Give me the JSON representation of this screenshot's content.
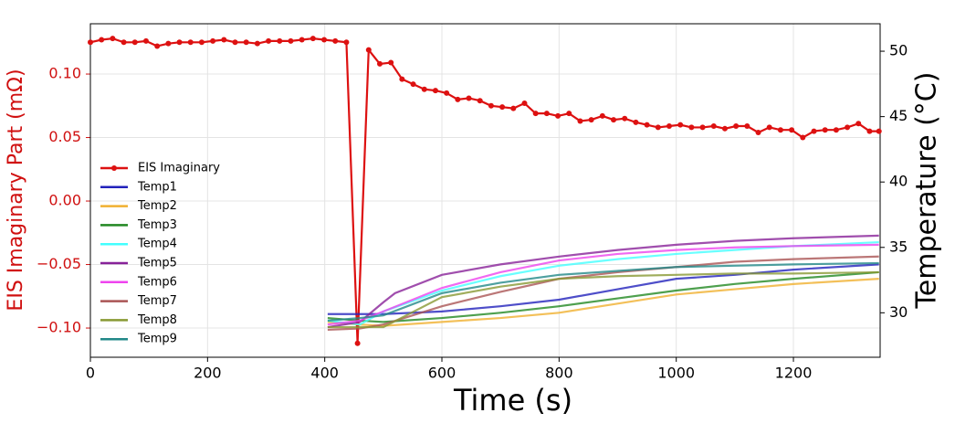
{
  "chart_data": {
    "type": "line",
    "xlabel": "Time (s)",
    "ylabel": "EIS Imaginary Part (mΩ)",
    "y2label": "Temperature (°C)",
    "xlim": [
      0,
      1348
    ],
    "xticks": [
      0,
      200,
      400,
      600,
      800,
      1000,
      1200
    ],
    "ylim": [
      -0.123,
      0.1396
    ],
    "yticks": [
      {
        "value": -0.1,
        "label": "−0.10"
      },
      {
        "value": -0.05,
        "label": "−0.05"
      },
      {
        "value": 0,
        "label": "0.00"
      },
      {
        "value": 0.05,
        "label": "0.05"
      },
      {
        "value": 0.1,
        "label": "0.10"
      }
    ],
    "y2lim": [
      26.6,
      52.1
    ],
    "y2ticks": [
      30,
      35,
      40,
      45,
      50
    ],
    "grid": true,
    "legend": "center left",
    "series": [
      {
        "name": "EIS Imaginary",
        "color": "#dd1111",
        "marker": true,
        "x": [
          0,
          19,
          38,
          57,
          76,
          95,
          114,
          133,
          152,
          171,
          190,
          209,
          228,
          247,
          266,
          285,
          304,
          323,
          342,
          361,
          380,
          399,
          418,
          437,
          456,
          475,
          494,
          513,
          532,
          551,
          570,
          589,
          608,
          627,
          646,
          665,
          684,
          703,
          722,
          741,
          760,
          779,
          798,
          817,
          836,
          855,
          874,
          893,
          912,
          931,
          950,
          969,
          988,
          1007,
          1026,
          1045,
          1064,
          1083,
          1102,
          1121,
          1140,
          1159,
          1178,
          1197,
          1216,
          1235,
          1254,
          1273,
          1292,
          1311,
          1330,
          1346
        ],
        "values": [
          0.125,
          0.127,
          0.128,
          0.125,
          0.125,
          0.126,
          0.122,
          0.124,
          0.125,
          0.125,
          0.125,
          0.126,
          0.127,
          0.125,
          0.125,
          0.124,
          0.126,
          0.126,
          0.126,
          0.127,
          0.128,
          0.127,
          0.126,
          0.125,
          -0.112,
          0.119,
          0.108,
          0.109,
          0.096,
          0.092,
          0.088,
          0.087,
          0.085,
          0.08,
          0.081,
          0.079,
          0.075,
          0.074,
          0.073,
          0.077,
          0.069,
          0.069,
          0.067,
          0.069,
          0.063,
          0.064,
          0.067,
          0.064,
          0.065,
          0.062,
          0.06,
          0.058,
          0.059,
          0.06,
          0.058,
          0.058,
          0.059,
          0.057,
          0.059,
          0.059,
          0.054,
          0.058,
          0.056,
          0.056,
          0.05,
          0.055,
          0.056,
          0.056,
          0.058,
          0.061,
          0.055,
          0.055
        ]
      },
      {
        "name": "Temp1",
        "color": "#2222bb",
        "axis": "y2",
        "x": [
          405,
          460,
          500,
          600,
          700,
          800,
          900,
          1000,
          1100,
          1200,
          1346
        ],
        "values": [
          29.9,
          29.9,
          29.9,
          30.1,
          30.5,
          31.0,
          31.8,
          32.6,
          32.9,
          33.3,
          33.7
        ]
      },
      {
        "name": "Temp2",
        "color": "#f0b030",
        "axis": "y2",
        "x": [
          405,
          460,
          500,
          600,
          700,
          800,
          900,
          1000,
          1100,
          1200,
          1346
        ],
        "values": [
          29.3,
          29.1,
          29.0,
          29.3,
          29.6,
          30.0,
          30.7,
          31.4,
          31.8,
          32.2,
          32.6
        ]
      },
      {
        "name": "Temp3",
        "color": "#228822",
        "axis": "y2",
        "x": [
          405,
          460,
          500,
          600,
          700,
          800,
          900,
          1000,
          1100,
          1200,
          1346
        ],
        "values": [
          29.6,
          29.4,
          29.3,
          29.6,
          30.0,
          30.5,
          31.1,
          31.7,
          32.2,
          32.6,
          33.1
        ]
      },
      {
        "name": "Temp4",
        "color": "#44ffff",
        "axis": "y2",
        "x": [
          405,
          460,
          500,
          600,
          700,
          800,
          900,
          1000,
          1100,
          1200,
          1346
        ],
        "values": [
          29.4,
          29.1,
          30.1,
          31.7,
          32.8,
          33.6,
          34.1,
          34.5,
          34.8,
          35.1,
          35.4
        ]
      },
      {
        "name": "Temp5",
        "color": "#882299",
        "axis": "y2",
        "x": [
          405,
          460,
          500,
          520,
          600,
          700,
          800,
          900,
          1000,
          1100,
          1200,
          1346
        ],
        "values": [
          28.9,
          29.3,
          30.8,
          31.5,
          32.9,
          33.7,
          34.3,
          34.8,
          35.2,
          35.5,
          35.7,
          35.9
        ]
      },
      {
        "name": "Temp6",
        "color": "#ee44ee",
        "axis": "y2",
        "x": [
          405,
          460,
          500,
          600,
          700,
          800,
          900,
          1000,
          1100,
          1200,
          1346
        ],
        "values": [
          29.1,
          29.4,
          30.1,
          31.9,
          33.1,
          34.0,
          34.5,
          34.8,
          35.0,
          35.1,
          35.2
        ]
      },
      {
        "name": "Temp7",
        "color": "#aa5555",
        "axis": "y2",
        "x": [
          405,
          460,
          500,
          600,
          700,
          800,
          900,
          1000,
          1100,
          1200,
          1346
        ],
        "values": [
          28.7,
          28.8,
          29.1,
          30.5,
          31.6,
          32.6,
          33.1,
          33.5,
          33.9,
          34.1,
          34.3
        ]
      },
      {
        "name": "Temp8",
        "color": "#889933",
        "axis": "y2",
        "x": [
          405,
          460,
          500,
          600,
          700,
          800,
          900,
          1000,
          1100,
          1200,
          1346
        ],
        "values": [
          28.9,
          28.9,
          28.9,
          31.2,
          32.0,
          32.6,
          32.8,
          32.9,
          33.0,
          33.0,
          33.1
        ]
      },
      {
        "name": "Temp9",
        "color": "#228888",
        "axis": "y2",
        "x": [
          405,
          460,
          500,
          600,
          700,
          800,
          900,
          1000,
          1100,
          1200,
          1346
        ],
        "values": [
          29.4,
          29.6,
          29.8,
          31.5,
          32.3,
          32.9,
          33.2,
          33.5,
          33.6,
          33.7,
          33.8
        ]
      }
    ]
  }
}
